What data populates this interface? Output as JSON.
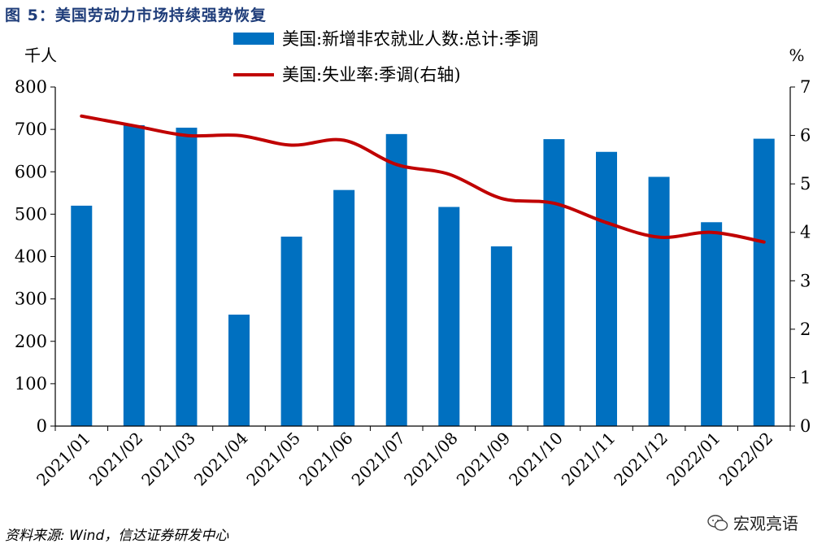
{
  "title": "图 5：美国劳动力市场持续强势恢复",
  "source": "资料来源: Wind，信达证券研发中心",
  "watermark": "宏观亮语",
  "chart_data": {
    "type": "bar+line",
    "categories": [
      "2021/01",
      "2021/02",
      "2021/03",
      "2021/04",
      "2021/05",
      "2021/06",
      "2021/07",
      "2021/08",
      "2021/09",
      "2021/10",
      "2021/11",
      "2021/12",
      "2022/01",
      "2022/02"
    ],
    "y_left_label": "千人",
    "y_right_label": "%",
    "y_left_lim": [
      0,
      800
    ],
    "y_left_ticks": [
      0,
      100,
      200,
      300,
      400,
      500,
      600,
      700,
      800
    ],
    "y_right_lim": [
      0,
      7
    ],
    "y_right_ticks": [
      0,
      1,
      2,
      3,
      4,
      5,
      6,
      7
    ],
    "legend_position": "top",
    "series": [
      {
        "name": "美国:新增非农就业人数:总计:季调",
        "type": "bar",
        "axis": "left",
        "color": "#0070c0",
        "values": [
          520,
          710,
          704,
          263,
          447,
          557,
          689,
          517,
          424,
          677,
          647,
          588,
          481,
          678
        ]
      },
      {
        "name": "美国:失业率:季调(右轴)",
        "type": "line",
        "axis": "right",
        "color": "#c00000",
        "values": [
          6.4,
          6.2,
          6.0,
          6.0,
          5.8,
          5.9,
          5.4,
          5.2,
          4.7,
          4.6,
          4.2,
          3.9,
          4.0,
          3.8
        ]
      }
    ]
  }
}
